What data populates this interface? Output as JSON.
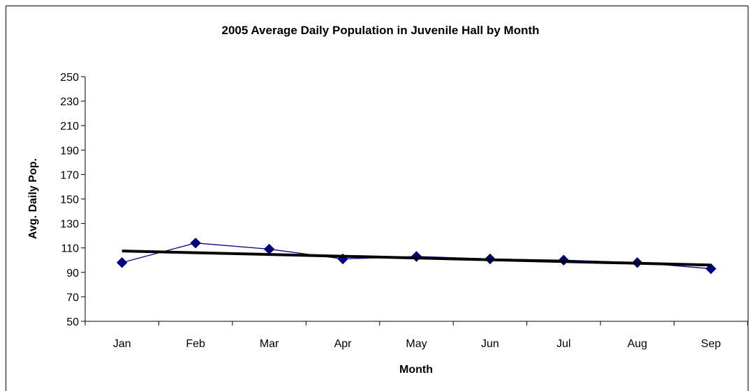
{
  "chart_data": {
    "type": "line",
    "title": "2005 Average Daily Population in Juvenile Hall by Month",
    "xlabel": "Month",
    "ylabel": "Avg. Daily Pop.",
    "categories": [
      "Jan",
      "Feb",
      "Mar",
      "Apr",
      "May",
      "Jun",
      "Jul",
      "Aug",
      "Sep"
    ],
    "ylim": [
      50,
      250
    ],
    "yticks": [
      50,
      70,
      90,
      110,
      130,
      150,
      170,
      190,
      210,
      230,
      250
    ],
    "series": [
      {
        "values": [
          98,
          114,
          109,
          101,
          103,
          101,
          100,
          98,
          93
        ],
        "color": "#000080",
        "marker": "diamond"
      }
    ],
    "trendline": {
      "type": "linear",
      "start": 107.5,
      "end": 96,
      "color": "#000000"
    },
    "grid": false,
    "legend": "none"
  }
}
